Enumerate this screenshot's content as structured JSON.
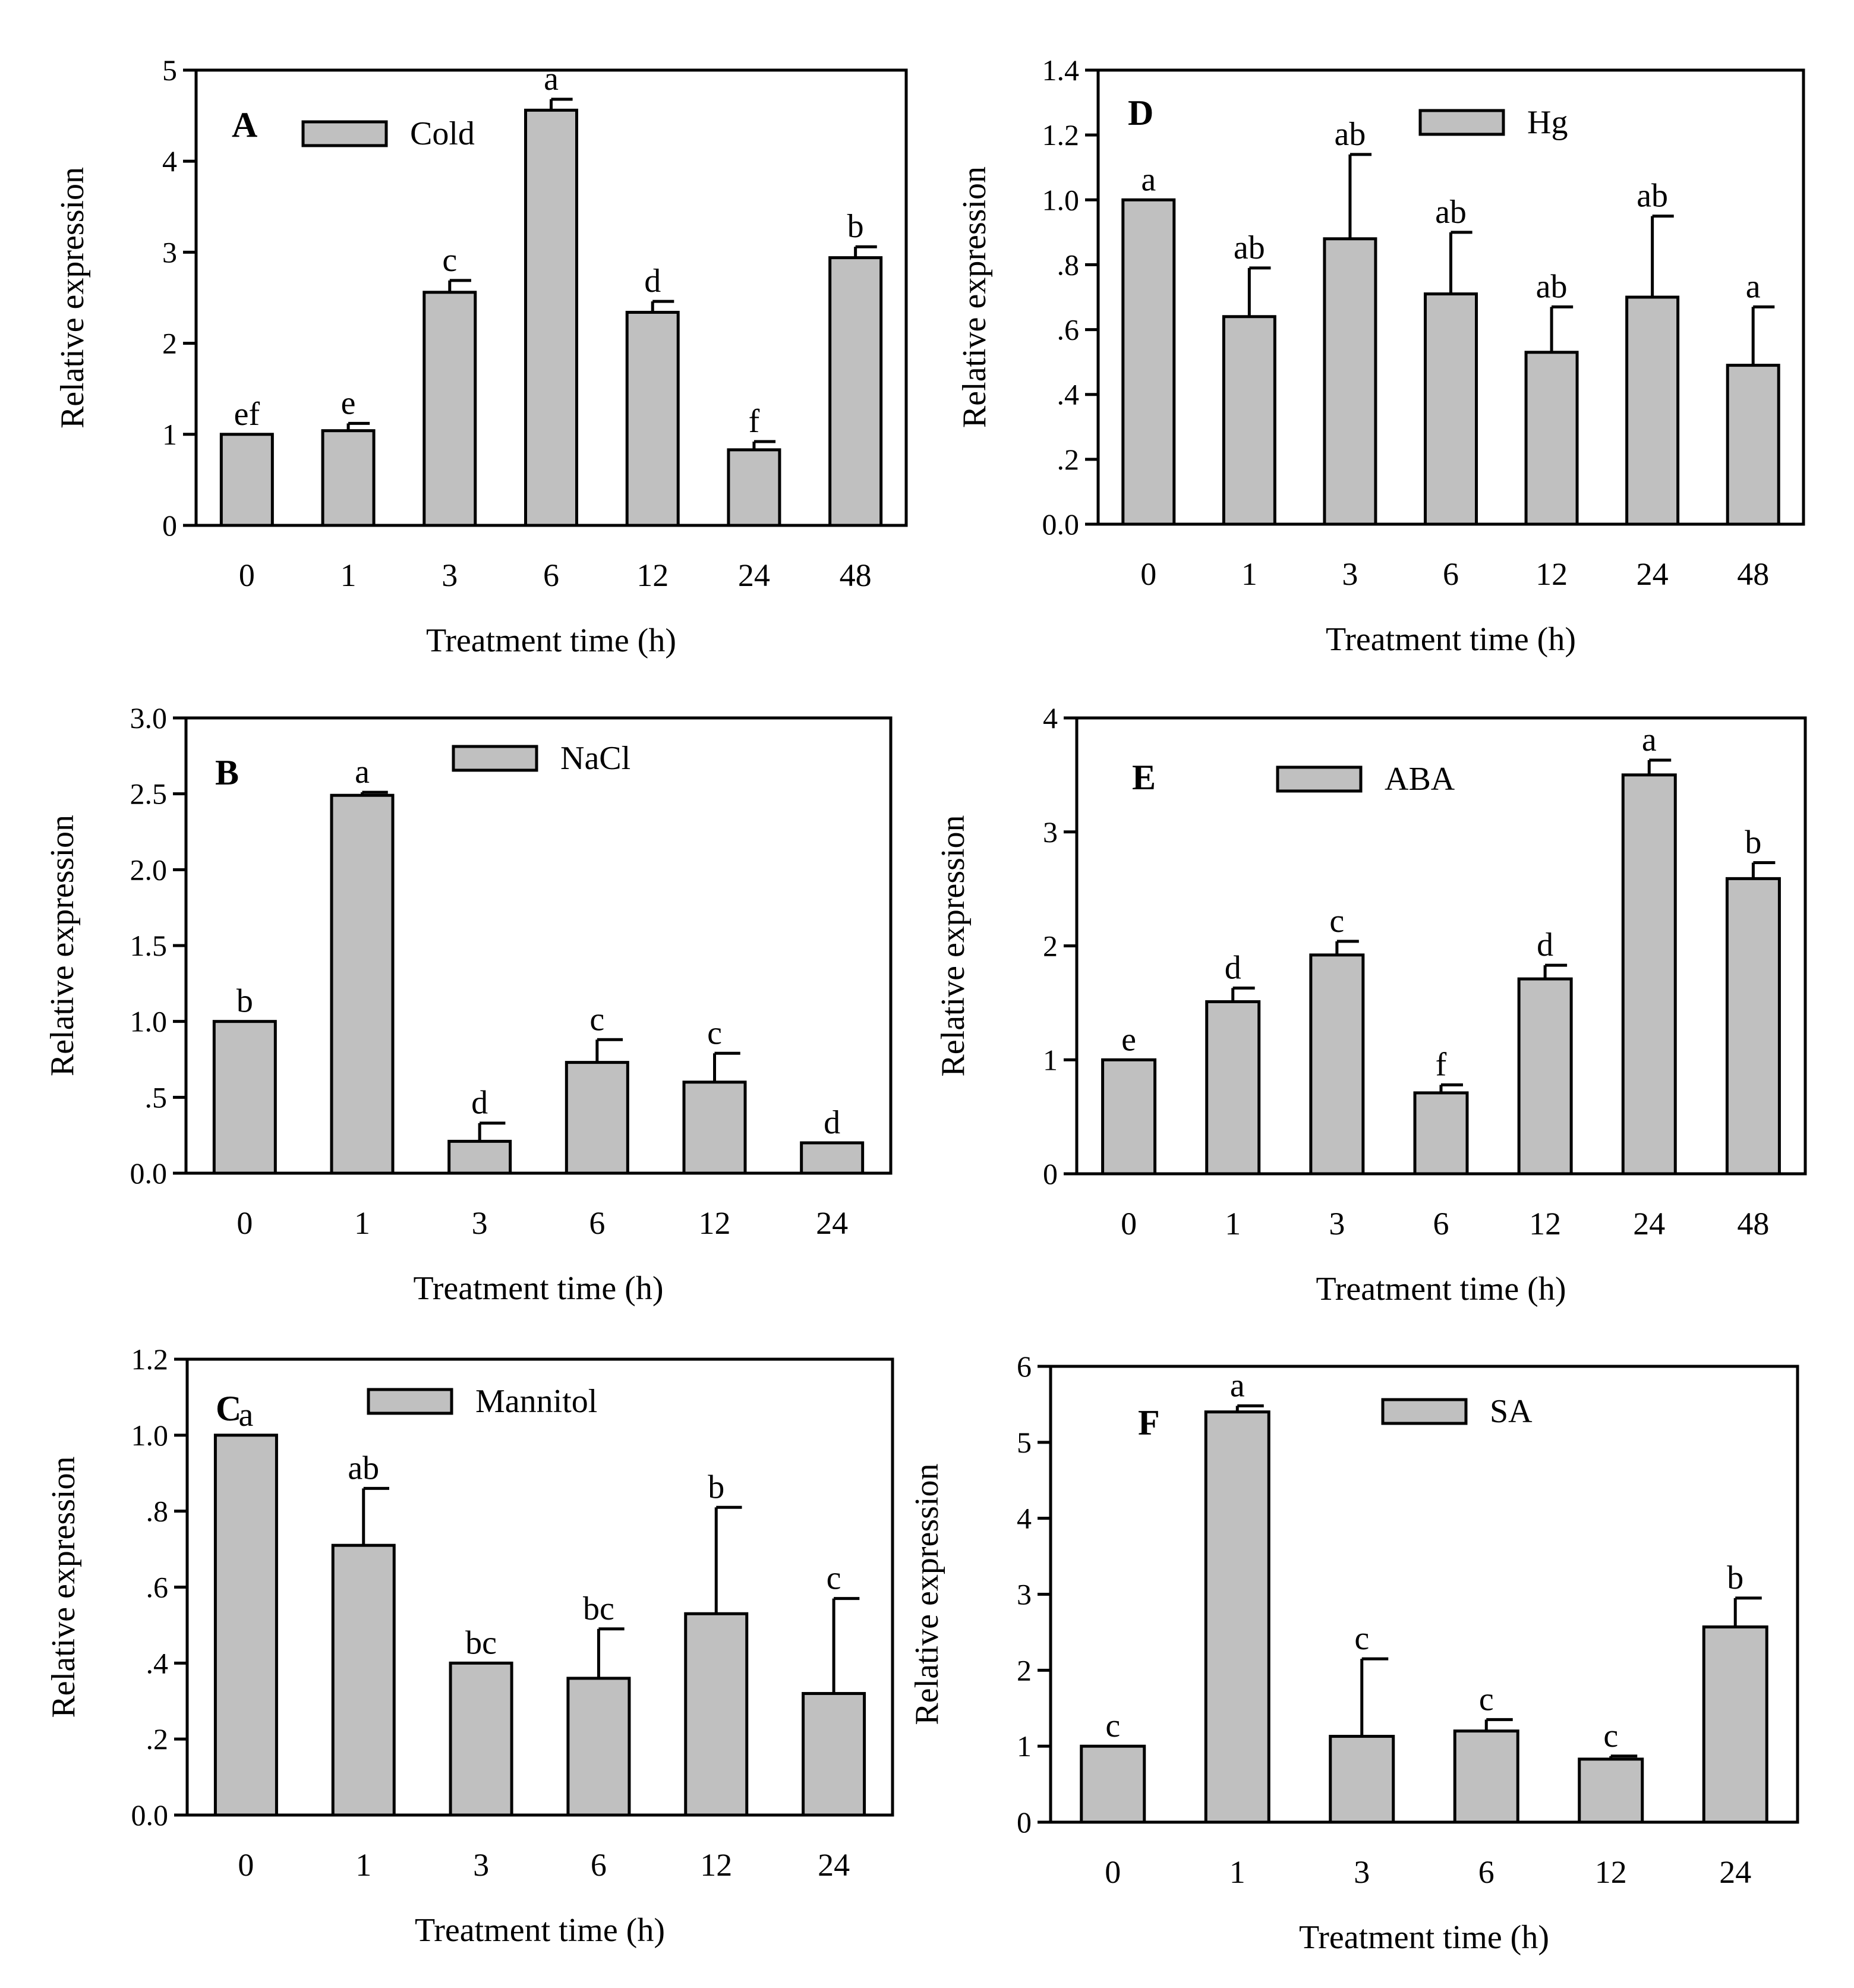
{
  "chart_data": [
    {
      "type": "bar",
      "panel": "A",
      "legend": [
        "Cold"
      ],
      "categories": [
        "0",
        "1",
        "3",
        "6",
        "12",
        "24",
        "48"
      ],
      "values": [
        1.0,
        1.04,
        2.56,
        4.56,
        2.34,
        0.83,
        2.94
      ],
      "errors": [
        0.0,
        0.08,
        0.13,
        0.12,
        0.12,
        0.09,
        0.12
      ],
      "labels": [
        "ef",
        "e",
        "c",
        "a",
        "d",
        "f",
        "b"
      ],
      "xlabel": "Treatment time (h)",
      "ylabel": "Relative expression",
      "ylim": [
        0,
        5
      ],
      "yticks": [
        {
          "value": 0,
          "label": "0"
        },
        {
          "value": 1,
          "label": "1"
        },
        {
          "value": 2,
          "label": "2"
        },
        {
          "value": 3,
          "label": "3"
        },
        {
          "value": 4,
          "label": "4"
        },
        {
          "value": 5,
          "label": "5"
        }
      ]
    },
    {
      "type": "bar",
      "panel": "B",
      "legend": [
        "NaCl"
      ],
      "categories": [
        "0",
        "1",
        "3",
        "6",
        "12",
        "24"
      ],
      "values": [
        1.0,
        2.49,
        0.21,
        0.73,
        0.6,
        0.2
      ],
      "errors": [
        0.0,
        0.02,
        0.12,
        0.15,
        0.19,
        0.0
      ],
      "labels": [
        "b",
        "a",
        "d",
        "c",
        "c",
        "d"
      ],
      "xlabel": "Treatment time (h)",
      "ylabel": "Relative expression",
      "ylim": [
        0,
        3
      ],
      "yticks": [
        {
          "value": 0,
          "label": "0.0"
        },
        {
          "value": 0.5,
          "label": ".5"
        },
        {
          "value": 1,
          "label": "1.0"
        },
        {
          "value": 1.5,
          "label": "1.5"
        },
        {
          "value": 2,
          "label": "2.0"
        },
        {
          "value": 2.5,
          "label": "2.5"
        },
        {
          "value": 3,
          "label": "3.0"
        }
      ]
    },
    {
      "type": "bar",
      "panel": "C",
      "legend": [
        "Mannitol"
      ],
      "categories": [
        "0",
        "1",
        "3",
        "6",
        "12",
        "24"
      ],
      "values": [
        1.0,
        0.71,
        0.4,
        0.36,
        0.53,
        0.32
      ],
      "errors": [
        0.0,
        0.15,
        0.0,
        0.13,
        0.28,
        0.25
      ],
      "labels": [
        "a",
        "ab",
        "bc",
        "bc",
        "b",
        "c"
      ],
      "xlabel": "Treatment time (h)",
      "ylabel": "Relative expression",
      "ylim": [
        0,
        1.2
      ],
      "yticks": [
        {
          "value": 0,
          "label": "0.0"
        },
        {
          "value": 0.2,
          "label": ".2"
        },
        {
          "value": 0.4,
          "label": ".4"
        },
        {
          "value": 0.6,
          "label": ".6"
        },
        {
          "value": 0.8,
          "label": ".8"
        },
        {
          "value": 1.0,
          "label": "1.0"
        },
        {
          "value": 1.2,
          "label": "1.2"
        }
      ]
    },
    {
      "type": "bar",
      "panel": "D",
      "legend": [
        "Hg"
      ],
      "categories": [
        "0",
        "1",
        "3",
        "6",
        "12",
        "24",
        "48"
      ],
      "values": [
        1.0,
        0.64,
        0.88,
        0.71,
        0.53,
        0.7,
        0.49
      ],
      "errors": [
        0.0,
        0.15,
        0.26,
        0.19,
        0.14,
        0.25,
        0.18
      ],
      "labels": [
        "a",
        "ab",
        "ab",
        "ab",
        "ab",
        "ab",
        "a"
      ],
      "xlabel": "Treatment time (h)",
      "ylabel": "Relative expression",
      "ylim": [
        0,
        1.4
      ],
      "yticks": [
        {
          "value": 0,
          "label": "0.0"
        },
        {
          "value": 0.2,
          "label": ".2"
        },
        {
          "value": 0.4,
          "label": ".4"
        },
        {
          "value": 0.6,
          "label": ".6"
        },
        {
          "value": 0.8,
          "label": ".8"
        },
        {
          "value": 1.0,
          "label": "1.0"
        },
        {
          "value": 1.2,
          "label": "1.2"
        },
        {
          "value": 1.4,
          "label": "1.4"
        }
      ]
    },
    {
      "type": "bar",
      "panel": "E",
      "legend": [
        "ABA"
      ],
      "categories": [
        "0",
        "1",
        "3",
        "6",
        "12",
        "24",
        "48"
      ],
      "values": [
        1.0,
        1.51,
        1.92,
        0.71,
        1.71,
        3.5,
        2.59
      ],
      "errors": [
        0.0,
        0.12,
        0.12,
        0.07,
        0.12,
        0.13,
        0.14
      ],
      "labels": [
        "e",
        "d",
        "c",
        "f",
        "d",
        "a",
        "b"
      ],
      "xlabel": "Treatment time (h)",
      "ylabel": "Relative expression",
      "ylim": [
        0,
        4
      ],
      "yticks": [
        {
          "value": 0,
          "label": "0"
        },
        {
          "value": 1,
          "label": "1"
        },
        {
          "value": 2,
          "label": "2"
        },
        {
          "value": 3,
          "label": "3"
        },
        {
          "value": 4,
          "label": "4"
        }
      ]
    },
    {
      "type": "bar",
      "panel": "F",
      "legend": [
        "SA"
      ],
      "categories": [
        "0",
        "1",
        "3",
        "6",
        "12",
        "24"
      ],
      "values": [
        1.0,
        5.4,
        1.13,
        1.2,
        0.83,
        2.57
      ],
      "errors": [
        0.0,
        0.08,
        1.02,
        0.15,
        0.04,
        0.38
      ],
      "labels": [
        "c",
        "a",
        "c",
        "c",
        "c",
        "b"
      ],
      "xlabel": "Treatment time (h)",
      "ylabel": "Relative expression",
      "ylim": [
        0,
        6
      ],
      "yticks": [
        {
          "value": 0,
          "label": "0"
        },
        {
          "value": 1,
          "label": "1"
        },
        {
          "value": 2,
          "label": "2"
        },
        {
          "value": 3,
          "label": "3"
        },
        {
          "value": 4,
          "label": "4"
        },
        {
          "value": 5,
          "label": "5"
        },
        {
          "value": 6,
          "label": "6"
        }
      ]
    }
  ]
}
